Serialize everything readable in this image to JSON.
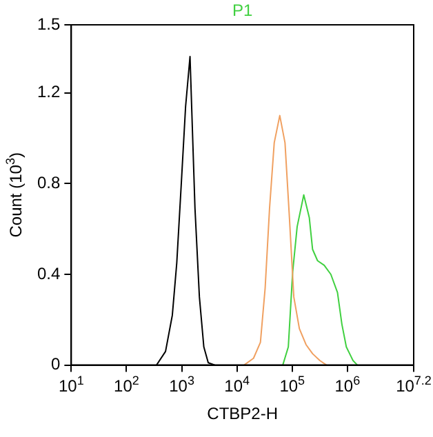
{
  "chart_data": {
    "type": "line",
    "title": "P1",
    "xlabel": "CTBP2-H",
    "ylabel": "Count (10$^{3}$)",
    "log": "x",
    "grid": false,
    "legend": false,
    "marker": "none",
    "line_style": "solid",
    "xlim": [
      10,
      15848932
    ],
    "xticks": [
      {
        "value": 10,
        "label": "10$^{1}$"
      },
      {
        "value": 100,
        "label": "10$^{2}$"
      },
      {
        "value": 1000,
        "label": "10$^{3}$"
      },
      {
        "value": 10000,
        "label": "10$^{4}$"
      },
      {
        "value": 100000,
        "label": "10$^{5}$"
      },
      {
        "value": 1000000,
        "label": "10$^{6}$"
      },
      {
        "value": 15848932,
        "label": "10$^{7.2}$"
      }
    ],
    "ylim": [
      0,
      1.5
    ],
    "yticks": [
      0,
      0.4,
      0.8,
      1.2,
      1.5
    ],
    "series": [
      {
        "color": "#000000",
        "x": [
          350,
          509,
          676,
          813,
          977,
          1175,
          1413,
          1738,
          2089,
          2512,
          3020,
          3981
        ],
        "values": [
          0,
          0.06,
          0.22,
          0.45,
          0.79,
          1.14,
          1.36,
          0.69,
          0.3,
          0.08,
          0.01,
          0
        ]
      },
      {
        "color": "#f0a060",
        "x": [
          13490,
          19950,
          26600,
          32400,
          38900,
          47300,
          59600,
          74100,
          89100,
          107000,
          135000,
          178000,
          234000,
          316000,
          417000
        ],
        "values": [
          0,
          0.03,
          0.1,
          0.34,
          0.69,
          0.98,
          1.1,
          0.98,
          0.65,
          0.3,
          0.16,
          0.09,
          0.05,
          0.02,
          0
        ]
      },
      {
        "color": "#40d040",
        "x": [
          67600,
          85100,
          102000,
          123000,
          162000,
          204000,
          234000,
          288000,
          380000,
          501000,
          661000,
          794000,
          955000,
          1260000,
          1510000
        ],
        "values": [
          0,
          0.08,
          0.41,
          0.61,
          0.75,
          0.65,
          0.51,
          0.46,
          0.44,
          0.4,
          0.32,
          0.18,
          0.08,
          0.02,
          0
        ]
      }
    ]
  }
}
